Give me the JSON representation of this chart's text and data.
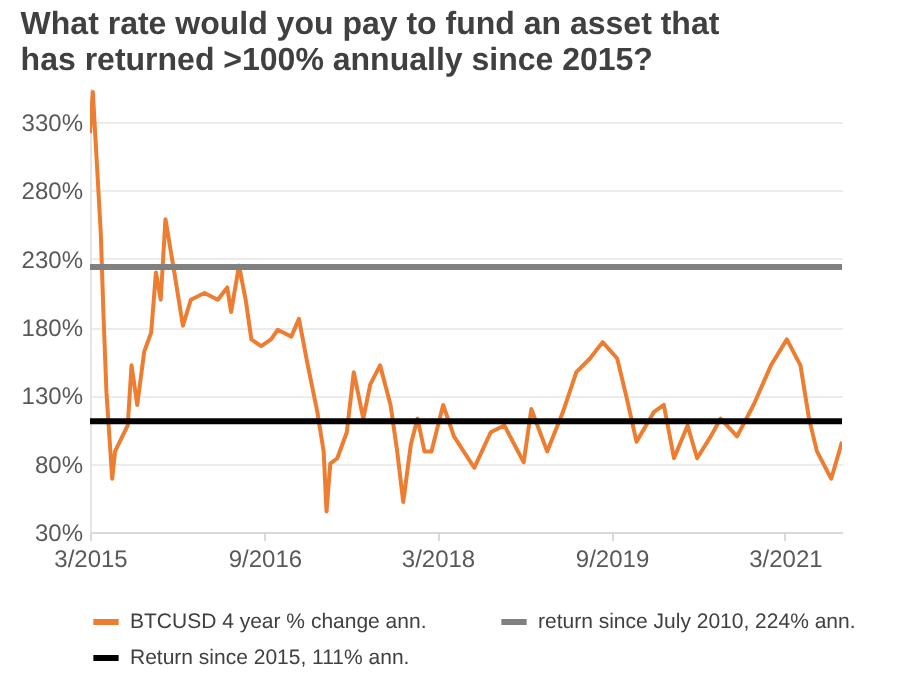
{
  "chart_data": {
    "type": "line",
    "title": "What rate would you pay to fund an asset that has returned >100% annually since 2015?",
    "xlim": [
      "2015-03-01",
      "2021-08-28"
    ],
    "xticks": [
      {
        "value": "2015-03",
        "label": "3/2015"
      },
      {
        "value": "2016-09",
        "label": "9/2016"
      },
      {
        "value": "2018-03",
        "label": "3/2018"
      },
      {
        "value": "2019-09",
        "label": "9/2019"
      },
      {
        "value": "2021-03",
        "label": "3/2021"
      }
    ],
    "ylim": [
      30,
      355
    ],
    "yticks": [
      {
        "value": 30,
        "label": "30%"
      },
      {
        "value": 80,
        "label": "80%"
      },
      {
        "value": 130,
        "label": "130%"
      },
      {
        "value": 180,
        "label": "180%"
      },
      {
        "value": 230,
        "label": "230%"
      },
      {
        "value": 280,
        "label": "280%"
      },
      {
        "value": 330,
        "label": "330%"
      }
    ],
    "grid": "y",
    "legend": "bottom",
    "marker": "none",
    "line_style": "solid",
    "series": [
      {
        "name": "BTCUSD 4 year % change ann.",
        "color": "#ed7d31",
        "x": [
          "2015-03-01",
          "2015-03-10",
          "2015-04-04",
          "2015-04-13",
          "2015-04-22",
          "2015-05-10",
          "2015-05-19",
          "2015-06-28",
          "2015-07-10",
          "2015-07-28",
          "2015-08-19",
          "2015-09-10",
          "2015-09-25",
          "2015-10-10",
          "2015-10-25",
          "2015-11-22",
          "2015-12-19",
          "2016-01-13",
          "2016-02-25",
          "2016-04-07",
          "2016-05-07",
          "2016-05-19",
          "2016-06-13",
          "2016-07-04",
          "2016-07-22",
          "2016-08-22",
          "2016-09-22",
          "2016-10-13",
          "2016-11-25",
          "2016-12-19",
          "2017-01-16",
          "2017-02-15",
          "2017-03-07",
          "2017-03-16",
          "2017-03-28",
          "2017-04-19",
          "2017-05-19",
          "2017-06-10",
          "2017-07-10",
          "2017-08-01",
          "2017-09-01",
          "2017-10-04",
          "2017-10-25",
          "2017-11-13",
          "2017-12-07",
          "2017-12-28",
          "2018-01-19",
          "2018-02-10",
          "2018-03-19",
          "2018-04-22",
          "2018-06-25",
          "2018-08-16",
          "2018-09-28",
          "2018-11-28",
          "2018-12-22",
          "2019-02-10",
          "2019-04-01",
          "2019-05-13",
          "2019-06-25",
          "2019-08-04",
          "2019-09-19",
          "2019-10-19",
          "2019-11-19",
          "2020-01-13",
          "2020-02-13",
          "2020-03-16",
          "2020-04-28",
          "2020-05-28",
          "2020-07-10",
          "2020-08-10",
          "2020-10-01",
          "2020-11-22",
          "2021-01-16",
          "2021-03-07",
          "2021-04-19",
          "2021-05-16",
          "2021-06-10",
          "2021-07-25",
          "2021-08-28"
        ],
        "values": [
          322,
          352,
          249,
          186,
          132,
          69,
          89,
          108,
          152,
          123,
          162,
          176,
          220,
          200,
          259,
          220,
          181,
          200,
          205,
          200,
          209,
          191,
          225,
          200,
          171,
          166,
          171,
          178,
          173,
          186,
          152,
          118,
          89,
          45,
          80,
          84,
          103,
          147,
          113,
          138,
          152,
          123,
          89,
          52,
          94,
          113,
          89,
          89,
          123,
          100,
          77,
          103,
          108,
          81,
          120,
          89,
          118,
          147,
          157,
          169,
          157,
          128,
          96,
          118,
          123,
          84,
          108,
          84,
          100,
          113,
          100,
          123,
          152,
          171,
          152,
          113,
          89,
          69,
          96
        ]
      },
      {
        "name": "return since July 2010, 224% ann.",
        "color": "#808080",
        "x": [
          "2015-03-01",
          "2021-08-28"
        ],
        "values": [
          224,
          224
        ]
      },
      {
        "name": "Return since 2015, 111% ann.",
        "color": "#000000",
        "x": [
          "2015-03-01",
          "2021-08-28"
        ],
        "values": [
          111,
          111
        ]
      }
    ]
  }
}
